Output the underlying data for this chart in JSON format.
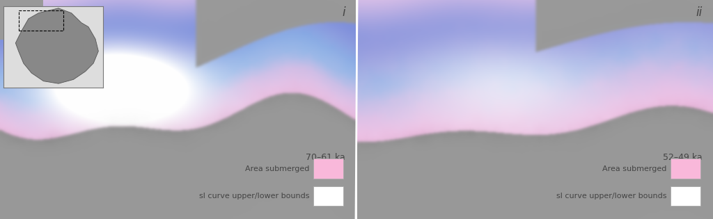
{
  "figure_width": 10.24,
  "figure_height": 3.15,
  "dpi": 100,
  "panel_i_label": "i",
  "panel_ii_label": "ii",
  "panel_i_time": "70–61 ka",
  "panel_ii_time": "52–49 ka",
  "legend_label1": "Area submerged",
  "legend_label2": "sl curve upper/lower bounds",
  "legend_color1": "#f9b8da",
  "legend_color2": "#ffffff",
  "legend_border": "#aaaaaa",
  "text_color": "#444444",
  "land_color": "#999999",
  "panel_label_fontsize": 12,
  "time_label_fontsize": 9,
  "legend_fontsize": 8
}
